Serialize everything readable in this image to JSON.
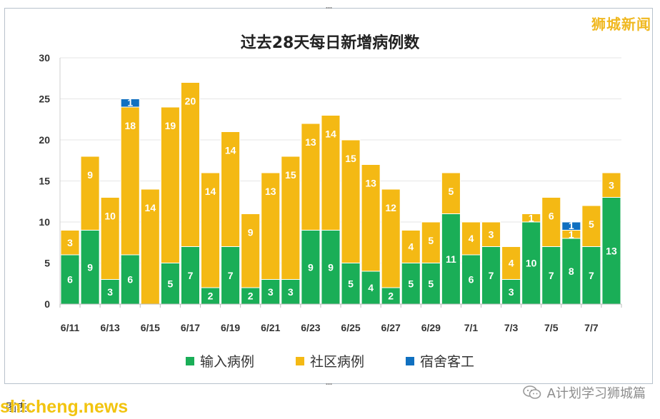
{
  "watermark_top": "狮城新闻",
  "site_mark": "shicheng.news",
  "footer_caption": "图表：",
  "account_mark": "A计划学习狮城篇",
  "icons": {
    "account": "wechat-icon"
  },
  "colors": {
    "imported": "#1aae57",
    "community": "#f4b914",
    "dormitory": "#1070c0",
    "grid": "#e6e6e6"
  },
  "chart_data": {
    "type": "bar",
    "stacked": true,
    "title": "过去28天每日新增病例数",
    "xlabel": "",
    "ylabel": "",
    "ylim": [
      0,
      30
    ],
    "yticks": [
      0,
      5,
      10,
      15,
      20,
      25,
      30
    ],
    "grid": true,
    "legend_position": "bottom",
    "x_tick_labels": [
      "6/11",
      "6/13",
      "6/15",
      "6/17",
      "6/19",
      "6/21",
      "6/23",
      "6/25",
      "6/27",
      "6/29",
      "7/1",
      "7/3",
      "7/5",
      "7/7"
    ],
    "categories": [
      "6/11",
      "6/12",
      "6/13",
      "6/14",
      "6/15",
      "6/16",
      "6/17",
      "6/18",
      "6/19",
      "6/20",
      "6/21",
      "6/22",
      "6/23",
      "6/24",
      "6/25",
      "6/26",
      "6/27",
      "6/28",
      "6/29",
      "6/30",
      "7/1",
      "7/2",
      "7/3",
      "7/4",
      "7/5",
      "7/6",
      "7/7",
      "7/8"
    ],
    "series": [
      {
        "name": "输入病例",
        "values": [
          6,
          9,
          3,
          6,
          0,
          5,
          7,
          2,
          7,
          2,
          3,
          3,
          9,
          9,
          5,
          4,
          2,
          5,
          5,
          11,
          6,
          7,
          3,
          10,
          7,
          8,
          7,
          13
        ]
      },
      {
        "name": "社区病例",
        "values": [
          3,
          9,
          10,
          18,
          14,
          19,
          20,
          14,
          14,
          9,
          13,
          15,
          13,
          14,
          15,
          13,
          12,
          4,
          5,
          5,
          4,
          3,
          4,
          1,
          6,
          1,
          5,
          3
        ]
      },
      {
        "name": "宿舍客工",
        "values": [
          0,
          0,
          0,
          1,
          0,
          0,
          0,
          0,
          0,
          0,
          0,
          0,
          0,
          0,
          0,
          0,
          0,
          0,
          0,
          0,
          0,
          0,
          0,
          0,
          0,
          1,
          0,
          0
        ]
      }
    ]
  }
}
